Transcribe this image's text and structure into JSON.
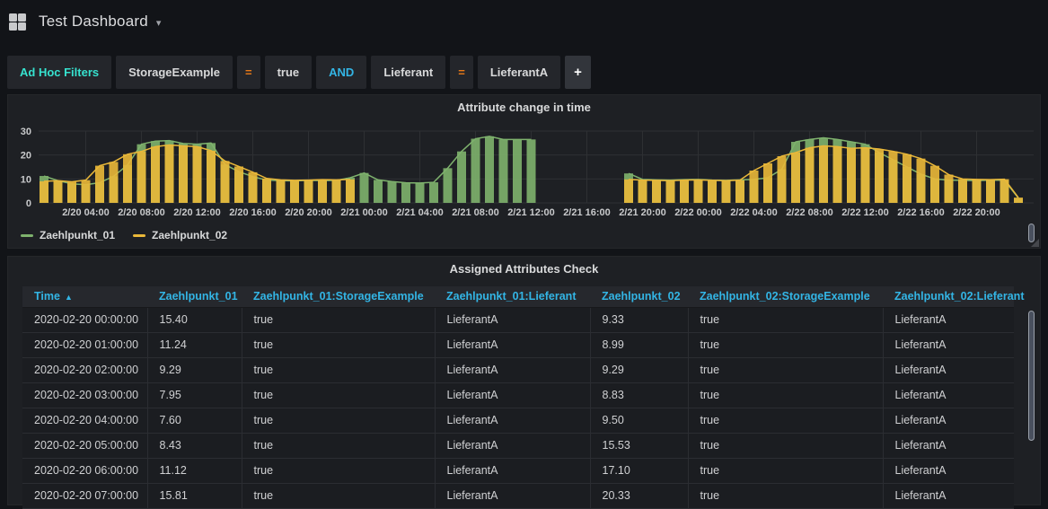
{
  "nav": {
    "title": "Test Dashboard",
    "caret_icon": "▾"
  },
  "filters": {
    "segments": [
      {
        "text": "Ad Hoc Filters",
        "type": "label"
      },
      {
        "text": "StorageExample",
        "type": "key"
      },
      {
        "text": "=",
        "type": "operator"
      },
      {
        "text": "true",
        "type": "value"
      },
      {
        "text": "AND",
        "type": "condition"
      },
      {
        "text": "Lieferant",
        "type": "key"
      },
      {
        "text": "=",
        "type": "operator"
      },
      {
        "text": "LieferantA",
        "type": "value"
      },
      {
        "text": "+",
        "type": "add-button"
      }
    ]
  },
  "chart_panel": {
    "title": "Attribute change in time"
  },
  "chart_data": {
    "type": "bar",
    "title": "Attribute change in time",
    "x_start": "2020-02-20 01:00",
    "x_interval_hours": 1,
    "x_ticks": [
      "2/20 04:00",
      "2/20 08:00",
      "2/20 12:00",
      "2/20 16:00",
      "2/20 20:00",
      "2/21 00:00",
      "2/21 04:00",
      "2/21 08:00",
      "2/21 12:00",
      "2/21 16:00",
      "2/21 20:00",
      "2/22 00:00",
      "2/22 04:00",
      "2/22 08:00",
      "2/22 12:00",
      "2/22 16:00",
      "2/22 20:00"
    ],
    "first_tick_index": 3,
    "tick_step": 4,
    "y_ticks": [
      0,
      10,
      20,
      30
    ],
    "ylim": [
      0,
      30
    ],
    "grid": true,
    "legend_position": "bottom-left",
    "series": [
      {
        "name": "Zaehlpunkt_01",
        "color": "#7EB26D",
        "values": [
          11.24,
          9.29,
          7.95,
          7.6,
          8.43,
          11.12,
          15.81,
          24.5,
          25.8,
          26.0,
          24.8,
          24.5,
          25.0,
          16.0,
          13.0,
          11.0,
          9.5,
          9.3,
          9.2,
          9.4,
          9.3,
          9.4,
          10.5,
          12.5,
          9.6,
          8.9,
          8.4,
          8.3,
          8.6,
          14.5,
          21.5,
          26.8,
          27.8,
          26.5,
          26.5,
          26.5,
          null,
          null,
          null,
          null,
          null,
          null,
          12.3,
          9.8,
          9.6,
          9.5,
          9.7,
          9.8,
          9.5,
          9.4,
          9.6,
          9.8,
          10.5,
          14.0,
          25.5,
          26.5,
          27.2,
          26.5,
          25.5,
          24.5,
          21.0,
          18.0,
          15.0,
          12.0,
          10.0,
          9.5,
          9.4,
          9.3,
          9.5,
          9.4,
          2.0
        ]
      },
      {
        "name": "Zaehlpunkt_02",
        "color": "#EAB839",
        "values": [
          8.99,
          9.29,
          8.83,
          9.5,
          15.53,
          17.1,
          20.33,
          21.5,
          23.5,
          24.2,
          23.8,
          23.5,
          21.8,
          17.5,
          15.2,
          12.8,
          10.2,
          9.6,
          9.4,
          9.5,
          9.7,
          9.6,
          9.8,
          null,
          null,
          null,
          null,
          null,
          null,
          null,
          null,
          null,
          null,
          null,
          null,
          null,
          null,
          null,
          null,
          null,
          null,
          null,
          9.8,
          9.5,
          9.4,
          9.3,
          9.5,
          9.6,
          9.4,
          9.3,
          9.5,
          13.5,
          16.5,
          19.5,
          21.0,
          23.0,
          23.8,
          23.5,
          22.8,
          23.0,
          22.5,
          21.5,
          20.3,
          18.5,
          15.5,
          11.8,
          10.0,
          9.8,
          9.7,
          9.9,
          2.2
        ]
      }
    ]
  },
  "table_panel": {
    "title": "Assigned Attributes Check",
    "columns": [
      {
        "label": "Time",
        "sort_arrow": "▲"
      },
      {
        "label": "Zaehlpunkt_01"
      },
      {
        "label": "Zaehlpunkt_01:StorageExample"
      },
      {
        "label": "Zaehlpunkt_01:Lieferant"
      },
      {
        "label": "Zaehlpunkt_02"
      },
      {
        "label": "Zaehlpunkt_02:StorageExample"
      },
      {
        "label": "Zaehlpunkt_02:Lieferant"
      }
    ],
    "rows": [
      [
        "2020-02-20 00:00:00",
        "15.40",
        "true",
        "LieferantA",
        "9.33",
        "true",
        "LieferantA"
      ],
      [
        "2020-02-20 01:00:00",
        "11.24",
        "true",
        "LieferantA",
        "8.99",
        "true",
        "LieferantA"
      ],
      [
        "2020-02-20 02:00:00",
        "9.29",
        "true",
        "LieferantA",
        "9.29",
        "true",
        "LieferantA"
      ],
      [
        "2020-02-20 03:00:00",
        "7.95",
        "true",
        "LieferantA",
        "8.83",
        "true",
        "LieferantA"
      ],
      [
        "2020-02-20 04:00:00",
        "7.60",
        "true",
        "LieferantA",
        "9.50",
        "true",
        "LieferantA"
      ],
      [
        "2020-02-20 05:00:00",
        "8.43",
        "true",
        "LieferantA",
        "15.53",
        "true",
        "LieferantA"
      ],
      [
        "2020-02-20 06:00:00",
        "11.12",
        "true",
        "LieferantA",
        "17.10",
        "true",
        "LieferantA"
      ],
      [
        "2020-02-20 07:00:00",
        "15.81",
        "true",
        "LieferantA",
        "20.33",
        "true",
        "LieferantA"
      ]
    ]
  },
  "colors": {
    "accent_blue": "#33b5e5",
    "accent_teal": "#36e2cf",
    "accent_orange": "#eb7b18",
    "series_green": "#7EB26D",
    "series_yellow": "#EAB839",
    "grid_line": "#2e3033",
    "axis_text": "#c9cacc"
  }
}
